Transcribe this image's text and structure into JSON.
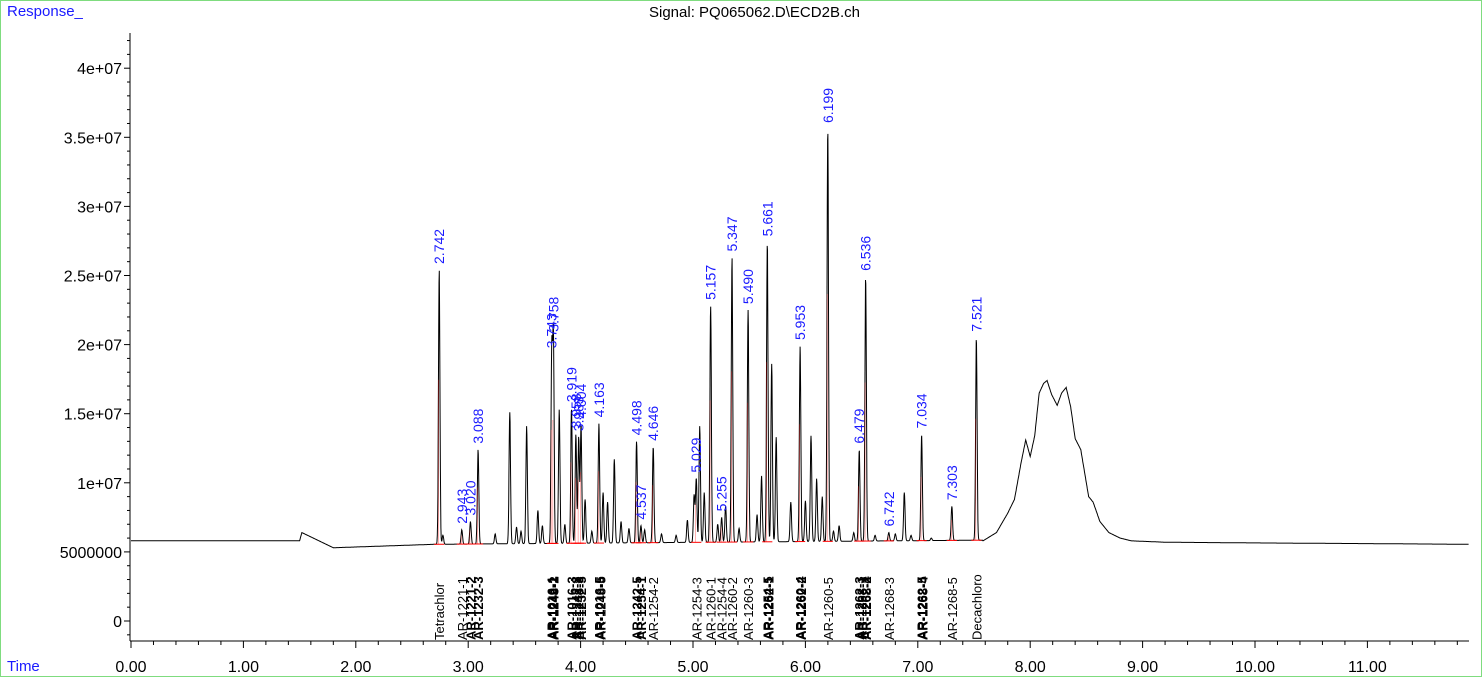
{
  "header": {
    "y_label": "Response_",
    "title": "Signal: PQ065062.D\\ECD2B.ch",
    "x_label": "Time"
  },
  "colors": {
    "trace": "#000000",
    "baseline": "#ff0000",
    "peak_label": "#1a1aff",
    "frame": "#7fdc7f"
  },
  "chart_data": {
    "type": "line",
    "title": "Signal: PQ065062.D\\ECD2B.ch",
    "xlabel": "Time",
    "ylabel": "Response_",
    "xlim": [
      0,
      11.9
    ],
    "ylim": [
      -1300000,
      43300000
    ],
    "grid": false,
    "x_ticks": [
      {
        "v": 0,
        "label": "0.00"
      },
      {
        "v": 1,
        "label": "1.00"
      },
      {
        "v": 2,
        "label": "2.00"
      },
      {
        "v": 3,
        "label": "3.00"
      },
      {
        "v": 4,
        "label": "4.00"
      },
      {
        "v": 5,
        "label": "5.00"
      },
      {
        "v": 6,
        "label": "6.00"
      },
      {
        "v": 7,
        "label": "7.00"
      },
      {
        "v": 8,
        "label": "8.00"
      },
      {
        "v": 9,
        "label": "9.00"
      },
      {
        "v": 10,
        "label": "10.00"
      },
      {
        "v": 11,
        "label": "11.00"
      }
    ],
    "y_ticks": [
      {
        "v": 0,
        "label": "0"
      },
      {
        "v": 5000000,
        "label": "5000000"
      },
      {
        "v": 10000000,
        "label": "1e+07"
      },
      {
        "v": 15000000,
        "label": "1.5e+07"
      },
      {
        "v": 20000000,
        "label": "2e+07"
      },
      {
        "v": 25000000,
        "label": "2.5e+07"
      },
      {
        "v": 30000000,
        "label": "3e+07"
      },
      {
        "v": 35000000,
        "label": "3.5e+07"
      },
      {
        "v": 40000000,
        "label": "4e+07"
      }
    ],
    "baseline_level": 5800000,
    "series": [
      {
        "peaks": [
          {
            "t": 2.742,
            "h": 25400000,
            "label": "2.742"
          },
          {
            "t": 2.775,
            "h": 6200000
          },
          {
            "t": 2.943,
            "h": 6600000,
            "label": "2.943"
          },
          {
            "t": 3.02,
            "h": 7200000,
            "label": "3.020"
          },
          {
            "t": 3.088,
            "h": 12400000,
            "label": "3.088"
          },
          {
            "t": 3.24,
            "h": 6300000
          },
          {
            "t": 3.37,
            "h": 15100000
          },
          {
            "t": 3.43,
            "h": 6800000
          },
          {
            "t": 3.47,
            "h": 6500000
          },
          {
            "t": 3.52,
            "h": 14100000
          },
          {
            "t": 3.62,
            "h": 8000000
          },
          {
            "t": 3.66,
            "h": 6900000
          },
          {
            "t": 3.743,
            "h": 19300000,
            "label": "3.743"
          },
          {
            "t": 3.758,
            "h": 20500000,
            "label": "3.758"
          },
          {
            "t": 3.81,
            "h": 15300000
          },
          {
            "t": 3.86,
            "h": 7000000
          },
          {
            "t": 3.919,
            "h": 15400000,
            "label": "3.919"
          },
          {
            "t": 3.958,
            "h": 13500000,
            "label": "3.958"
          },
          {
            "t": 3.983,
            "h": 13300000,
            "label": "3.983"
          },
          {
            "t": 4.004,
            "h": 14200000,
            "label": "4.004"
          },
          {
            "t": 4.04,
            "h": 8800000
          },
          {
            "t": 4.1,
            "h": 6500000
          },
          {
            "t": 4.163,
            "h": 14300000,
            "label": "4.163"
          },
          {
            "t": 4.2,
            "h": 9300000
          },
          {
            "t": 4.24,
            "h": 8600000
          },
          {
            "t": 4.3,
            "h": 11700000
          },
          {
            "t": 4.36,
            "h": 7200000
          },
          {
            "t": 4.43,
            "h": 6700000
          },
          {
            "t": 4.498,
            "h": 13000000,
            "label": "4.498"
          },
          {
            "t": 4.537,
            "h": 6900000,
            "label": "4.537"
          },
          {
            "t": 4.57,
            "h": 6600000
          },
          {
            "t": 4.646,
            "h": 12600000,
            "label": "4.646"
          },
          {
            "t": 4.72,
            "h": 6300000
          },
          {
            "t": 4.85,
            "h": 6200000
          },
          {
            "t": 4.95,
            "h": 7300000
          },
          {
            "t": 5.01,
            "h": 9100000
          },
          {
            "t": 5.029,
            "h": 10300000,
            "label": "5.029"
          },
          {
            "t": 5.06,
            "h": 14100000
          },
          {
            "t": 5.1,
            "h": 9300000
          },
          {
            "t": 5.157,
            "h": 22800000,
            "label": "5.157"
          },
          {
            "t": 5.22,
            "h": 7000000
          },
          {
            "t": 5.255,
            "h": 7500000,
            "label": "5.255"
          },
          {
            "t": 5.29,
            "h": 8300000
          },
          {
            "t": 5.347,
            "h": 26300000,
            "label": "5.347"
          },
          {
            "t": 5.41,
            "h": 6700000
          },
          {
            "t": 5.49,
            "h": 22500000,
            "label": "5.490"
          },
          {
            "t": 5.57,
            "h": 7700000
          },
          {
            "t": 5.61,
            "h": 10500000
          },
          {
            "t": 5.661,
            "h": 27400000,
            "label": "5.661"
          },
          {
            "t": 5.7,
            "h": 18600000
          },
          {
            "t": 5.74,
            "h": 13300000
          },
          {
            "t": 5.87,
            "h": 8600000
          },
          {
            "t": 5.953,
            "h": 19900000,
            "label": "5.953"
          },
          {
            "t": 6.0,
            "h": 8700000
          },
          {
            "t": 6.05,
            "h": 13400000
          },
          {
            "t": 6.1,
            "h": 10300000
          },
          {
            "t": 6.15,
            "h": 9000000
          },
          {
            "t": 6.199,
            "h": 35600000,
            "label": "6.199"
          },
          {
            "t": 6.25,
            "h": 6500000
          },
          {
            "t": 6.3,
            "h": 6900000
          },
          {
            "t": 6.43,
            "h": 6400000
          },
          {
            "t": 6.479,
            "h": 12400000,
            "label": "6.479"
          },
          {
            "t": 6.536,
            "h": 24900000,
            "label": "6.536"
          },
          {
            "t": 6.62,
            "h": 6200000
          },
          {
            "t": 6.742,
            "h": 6400000,
            "label": "6.742"
          },
          {
            "t": 6.8,
            "h": 6300000
          },
          {
            "t": 6.88,
            "h": 9300000
          },
          {
            "t": 6.94,
            "h": 6200000
          },
          {
            "t": 7.034,
            "h": 13500000,
            "label": "7.034"
          },
          {
            "t": 7.12,
            "h": 6000000
          },
          {
            "t": 7.303,
            "h": 8300000,
            "label": "7.303"
          },
          {
            "t": 7.521,
            "h": 20500000,
            "label": "7.521"
          }
        ],
        "hump": [
          [
            7.58,
            5800000
          ],
          [
            7.7,
            6400000
          ],
          [
            7.8,
            7800000
          ],
          [
            7.86,
            8800000
          ],
          [
            7.92,
            11500000
          ],
          [
            7.96,
            13100000
          ],
          [
            8.0,
            11900000
          ],
          [
            8.04,
            13400000
          ],
          [
            8.08,
            16500000
          ],
          [
            8.12,
            17200000
          ],
          [
            8.15,
            17400000
          ],
          [
            8.19,
            16400000
          ],
          [
            8.24,
            15600000
          ],
          [
            8.28,
            16500000
          ],
          [
            8.32,
            16900000
          ],
          [
            8.36,
            15500000
          ],
          [
            8.4,
            13200000
          ],
          [
            8.45,
            12400000
          ],
          [
            8.52,
            9000000
          ],
          [
            8.56,
            8600000
          ],
          [
            8.62,
            7200000
          ],
          [
            8.7,
            6400000
          ],
          [
            8.8,
            6000000
          ],
          [
            8.9,
            5800000
          ],
          [
            9.2,
            5700000
          ],
          [
            10.0,
            5650000
          ],
          [
            11.0,
            5600000
          ],
          [
            11.9,
            5550000
          ]
        ]
      }
    ],
    "compounds": [
      {
        "t": 2.742,
        "label": "Tetrachlor",
        "bold": false
      },
      {
        "t": 2.943,
        "label": "AR-1221-1",
        "bold": false
      },
      {
        "t": 3.02,
        "label": "AR-1221-2",
        "bold": true
      },
      {
        "t": 3.088,
        "label": "AR-1232-3",
        "bold": true
      },
      {
        "t": 3.743,
        "label": "AR-1016-1",
        "bold": true
      },
      {
        "t": 3.75,
        "label": "AR-1242-1",
        "bold": true
      },
      {
        "t": 3.758,
        "label": "AR-1248-2",
        "bold": true
      },
      {
        "t": 3.919,
        "label": "AR-1016-3",
        "bold": true
      },
      {
        "t": 3.958,
        "label": "AR-1242-3",
        "bold": true
      },
      {
        "t": 3.983,
        "label": "AR-1248-3",
        "bold": true
      },
      {
        "t": 4.004,
        "label": "AR-1232-5",
        "bold": true
      },
      {
        "t": 4.163,
        "label": "AR-1016-5",
        "bold": true
      },
      {
        "t": 4.175,
        "label": "AR-1248-5",
        "bold": true
      },
      {
        "t": 4.498,
        "label": "AR-1242-5",
        "bold": true
      },
      {
        "t": 4.537,
        "label": "AR-1254-1",
        "bold": true
      },
      {
        "t": 4.646,
        "label": "AR-1254-2",
        "bold": false
      },
      {
        "t": 5.029,
        "label": "AR-1254-3",
        "bold": false
      },
      {
        "t": 5.157,
        "label": "AR-1260-1",
        "bold": false
      },
      {
        "t": 5.255,
        "label": "AR-1254-4",
        "bold": false
      },
      {
        "t": 5.347,
        "label": "AR-1260-2",
        "bold": false
      },
      {
        "t": 5.49,
        "label": "AR-1260-3",
        "bold": false
      },
      {
        "t": 5.661,
        "label": "AR-1254-5",
        "bold": true
      },
      {
        "t": 5.67,
        "label": "AR-1262-1",
        "bold": true
      },
      {
        "t": 5.953,
        "label": "AR-1260-4",
        "bold": true
      },
      {
        "t": 5.962,
        "label": "AR-1262-2",
        "bold": true
      },
      {
        "t": 6.199,
        "label": "AR-1260-5",
        "bold": false
      },
      {
        "t": 6.479,
        "label": "AR-1262-3",
        "bold": true
      },
      {
        "t": 6.5,
        "label": "AR-1268-1",
        "bold": true
      },
      {
        "t": 6.536,
        "label": "AR-1262-4",
        "bold": true
      },
      {
        "t": 6.54,
        "label": "AR-1268-2",
        "bold": true
      },
      {
        "t": 6.742,
        "label": "AR-1268-3",
        "bold": false
      },
      {
        "t": 7.034,
        "label": "AR-1262-5",
        "bold": true
      },
      {
        "t": 7.04,
        "label": "AR-1268-4",
        "bold": true
      },
      {
        "t": 7.303,
        "label": "AR-1268-5",
        "bold": false
      },
      {
        "t": 7.521,
        "label": "Decachloro",
        "bold": false
      }
    ]
  }
}
